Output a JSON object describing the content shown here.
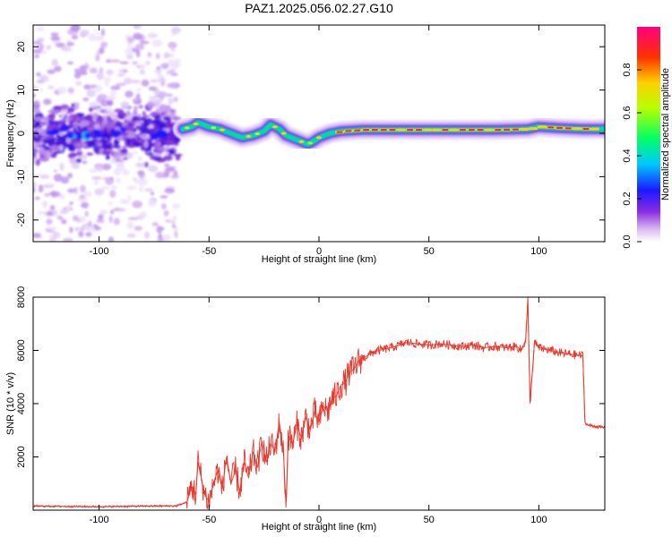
{
  "title": "PAZ1.2025.056.02.27.G10",
  "chart_data": [
    {
      "type": "heatmap",
      "xlabel": "Height of straight line (km)",
      "ylabel": "Frequency (Hz)",
      "xlim": [
        -130,
        130
      ],
      "ylim": [
        -25,
        25
      ],
      "xticks": [
        -100,
        -50,
        0,
        50,
        100
      ],
      "yticks": [
        -20,
        -10,
        0,
        10,
        20
      ],
      "colorbar": {
        "label": "Normalized spectral amplitude",
        "range": [
          0,
          1
        ],
        "ticks": [
          0.0,
          0.2,
          0.4,
          0.6,
          0.8
        ],
        "colormap": "rainbow (white-purple-blue-cyan-green-yellow-red-magenta)"
      },
      "ridge": {
        "x": [
          -62,
          -58,
          -55,
          -50,
          -45,
          -40,
          -35,
          -30,
          -25,
          -22,
          -18,
          -15,
          -10,
          -5,
          -3,
          0,
          5,
          10,
          20,
          40,
          60,
          80,
          95,
          100,
          110,
          120,
          130
        ],
        "y": [
          1.0,
          1.5,
          2.5,
          1.5,
          1.0,
          0.0,
          -1.0,
          -0.5,
          0.5,
          2.0,
          1.0,
          -0.5,
          -1.5,
          -2.5,
          -2.0,
          -1.0,
          0.0,
          0.5,
          0.8,
          0.8,
          0.8,
          0.8,
          1.0,
          1.5,
          1.2,
          1.0,
          1.0
        ]
      },
      "noise_region_x": [
        -130,
        -64
      ]
    },
    {
      "type": "line",
      "xlabel": "Height of straight line (km)",
      "ylabel": "SNR (10 * v/v)",
      "xlim": [
        -130,
        130
      ],
      "ylim": [
        0,
        8000
      ],
      "xticks": [
        -100,
        -50,
        0,
        50,
        100
      ],
      "yticks": [
        2000,
        4000,
        6000,
        8000
      ],
      "series": [
        {
          "color": "#e8372c",
          "x": [
            -130,
            -100,
            -80,
            -65,
            -60,
            -58,
            -56,
            -55,
            -52,
            -50,
            -48,
            -46,
            -44,
            -42,
            -40,
            -38,
            -36,
            -34,
            -32,
            -30,
            -28,
            -26,
            -24,
            -22,
            -20,
            -18,
            -16,
            -15,
            -14,
            -12,
            -10,
            -8,
            -6,
            -4,
            -2,
            0,
            2,
            4,
            6,
            8,
            10,
            12,
            14,
            16,
            18,
            20,
            25,
            30,
            35,
            40,
            45,
            50,
            55,
            60,
            65,
            70,
            75,
            80,
            85,
            90,
            92,
            94,
            95,
            96,
            98,
            100,
            105,
            110,
            115,
            120,
            121,
            122,
            125,
            130
          ],
          "y": [
            150,
            130,
            150,
            160,
            300,
            900,
            600,
            1800,
            600,
            300,
            1000,
            1500,
            800,
            2000,
            1000,
            1500,
            700,
            1800,
            1200,
            2200,
            1600,
            2600,
            1800,
            2500,
            2200,
            3300,
            2000,
            100,
            2800,
            2500,
            3200,
            2700,
            3500,
            3000,
            3700,
            3300,
            3900,
            3700,
            4200,
            4300,
            4700,
            4800,
            5200,
            5300,
            5600,
            5700,
            5950,
            6050,
            6150,
            6300,
            6250,
            6200,
            6250,
            6200,
            6150,
            6200,
            6100,
            6150,
            6100,
            6150,
            6000,
            6400,
            7900,
            4000,
            6300,
            6100,
            6000,
            5900,
            5850,
            5800,
            3300,
            3200,
            3150,
            3100
          ]
        }
      ]
    }
  ]
}
